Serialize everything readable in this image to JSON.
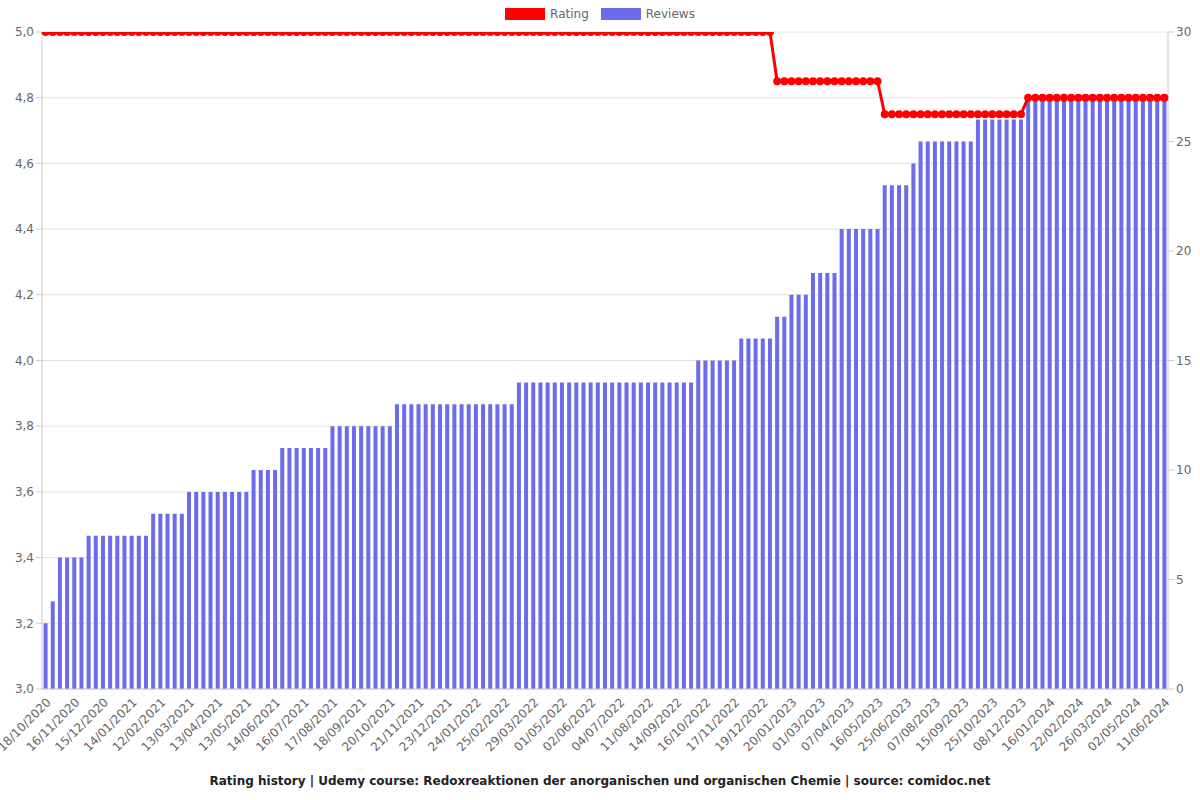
{
  "chart_data": {
    "type": "bar",
    "title": "Rating history | Udemy course: Redoxreaktionen der anorganischen und organischen Chemie | source: comidoc.net",
    "categories": [
      "18/10/2020",
      null,
      null,
      null,
      "16/11/2020",
      null,
      null,
      null,
      "15/12/2020",
      null,
      null,
      null,
      "14/01/2021",
      null,
      null,
      null,
      "12/02/2021",
      null,
      null,
      null,
      "13/03/2021",
      null,
      null,
      null,
      "13/04/2021",
      null,
      null,
      null,
      "13/05/2021",
      null,
      null,
      null,
      "14/06/2021",
      null,
      null,
      null,
      "16/07/2021",
      null,
      null,
      null,
      "17/08/2021",
      null,
      null,
      null,
      "18/09/2021",
      null,
      null,
      null,
      "20/10/2021",
      null,
      null,
      null,
      "21/11/2021",
      null,
      null,
      null,
      "23/12/2021",
      null,
      null,
      null,
      "24/01/2022",
      null,
      null,
      null,
      "25/02/2022",
      null,
      null,
      null,
      "29/03/2022",
      null,
      null,
      null,
      "01/05/2022",
      null,
      null,
      null,
      "02/06/2022",
      null,
      null,
      null,
      "04/07/2022",
      null,
      null,
      null,
      "11/08/2022",
      null,
      null,
      null,
      "14/09/2022",
      null,
      null,
      null,
      "16/10/2022",
      null,
      null,
      null,
      "17/11/2022",
      null,
      null,
      null,
      "19/12/2022",
      null,
      null,
      null,
      "20/01/2023",
      null,
      null,
      null,
      "01/03/2023",
      null,
      null,
      null,
      "07/04/2023",
      null,
      null,
      null,
      "16/05/2023",
      null,
      null,
      null,
      "25/06/2023",
      null,
      null,
      null,
      "07/08/2023",
      null,
      null,
      null,
      "15/09/2023",
      null,
      null,
      null,
      "25/10/2023",
      null,
      null,
      null,
      "08/12/2023",
      null,
      null,
      null,
      "16/01/2024",
      null,
      null,
      null,
      "22/02/2024",
      null,
      null,
      null,
      "26/03/2024",
      null,
      null,
      null,
      "02/05/2024",
      null,
      null,
      null,
      "11/06/2024"
    ],
    "series": [
      {
        "name": "Rating",
        "type": "line",
        "color": "#ff0000",
        "marker": "circle",
        "axis": "y",
        "values": [
          5,
          5,
          5,
          5,
          5,
          5,
          5,
          5,
          5,
          5,
          5,
          5,
          5,
          5,
          5,
          5,
          5,
          5,
          5,
          5,
          5,
          5,
          5,
          5,
          5,
          5,
          5,
          5,
          5,
          5,
          5,
          5,
          5,
          5,
          5,
          5,
          5,
          5,
          5,
          5,
          5,
          5,
          5,
          5,
          5,
          5,
          5,
          5,
          5,
          5,
          5,
          5,
          5,
          5,
          5,
          5,
          5,
          5,
          5,
          5,
          5,
          5,
          5,
          5,
          5,
          5,
          5,
          5,
          5,
          5,
          5,
          5,
          5,
          5,
          5,
          5,
          5,
          5,
          5,
          5,
          5,
          5,
          5,
          5,
          5,
          5,
          5,
          5,
          5,
          5,
          5,
          5,
          5,
          5,
          5,
          5,
          5,
          5,
          5,
          5,
          5,
          5,
          4.85,
          4.85,
          4.85,
          4.85,
          4.85,
          4.85,
          4.85,
          4.85,
          4.85,
          4.85,
          4.85,
          4.85,
          4.85,
          4.85,
          4.85,
          4.75,
          4.75,
          4.75,
          4.75,
          4.75,
          4.75,
          4.75,
          4.75,
          4.75,
          4.75,
          4.75,
          4.75,
          4.75,
          4.75,
          4.75,
          4.75,
          4.75,
          4.75,
          4.75,
          4.75,
          4.8,
          4.8,
          4.8,
          4.8,
          4.8,
          4.8,
          4.8,
          4.8,
          4.8,
          4.8,
          4.8,
          4.8,
          4.8,
          4.8,
          4.8,
          4.8,
          4.8,
          4.8,
          4.8,
          4.8
        ]
      },
      {
        "name": "Reviews",
        "type": "bar",
        "color": "#6b6bee",
        "axis": "y2",
        "values": [
          3,
          4,
          6,
          6,
          6,
          6,
          7,
          7,
          7,
          7,
          7,
          7,
          7,
          7,
          7,
          8,
          8,
          8,
          8,
          8,
          9,
          9,
          9,
          9,
          9,
          9,
          9,
          9,
          9,
          10,
          10,
          10,
          10,
          11,
          11,
          11,
          11,
          11,
          11,
          11,
          12,
          12,
          12,
          12,
          12,
          12,
          12,
          12,
          12,
          13,
          13,
          13,
          13,
          13,
          13,
          13,
          13,
          13,
          13,
          13,
          13,
          13,
          13,
          13,
          13,
          13,
          14,
          14,
          14,
          14,
          14,
          14,
          14,
          14,
          14,
          14,
          14,
          14,
          14,
          14,
          14,
          14,
          14,
          14,
          14,
          14,
          14,
          14,
          14,
          14,
          14,
          15,
          15,
          15,
          15,
          15,
          15,
          16,
          16,
          16,
          16,
          16,
          17,
          17,
          18,
          18,
          18,
          19,
          19,
          19,
          19,
          21,
          21,
          21,
          21,
          21,
          21,
          23,
          23,
          23,
          23,
          24,
          25,
          25,
          25,
          25,
          25,
          25,
          25,
          25,
          26,
          26,
          26,
          26,
          26,
          26,
          26,
          27,
          27,
          27,
          27,
          27,
          27,
          27,
          27,
          27,
          27,
          27,
          27,
          27,
          27,
          27,
          27,
          27,
          27,
          27,
          27
        ]
      }
    ],
    "ylim": [
      3,
      5
    ],
    "yticks": [
      {
        "value": 3,
        "label": "3,0"
      },
      {
        "value": 3.2,
        "label": "3,2"
      },
      {
        "value": 3.4,
        "label": "3,4"
      },
      {
        "value": 3.6,
        "label": "3,6"
      },
      {
        "value": 3.8,
        "label": "3,8"
      },
      {
        "value": 4,
        "label": "4,0"
      },
      {
        "value": 4.2,
        "label": "4,2"
      },
      {
        "value": 4.4,
        "label": "4,4"
      },
      {
        "value": 4.6,
        "label": "4,6"
      },
      {
        "value": 4.8,
        "label": "4,8"
      },
      {
        "value": 5,
        "label": "5,0"
      }
    ],
    "y2lim": [
      0,
      30
    ],
    "y2ticks": [
      0,
      5,
      10,
      15,
      20,
      25,
      30
    ],
    "grid": true,
    "legend": "top"
  }
}
